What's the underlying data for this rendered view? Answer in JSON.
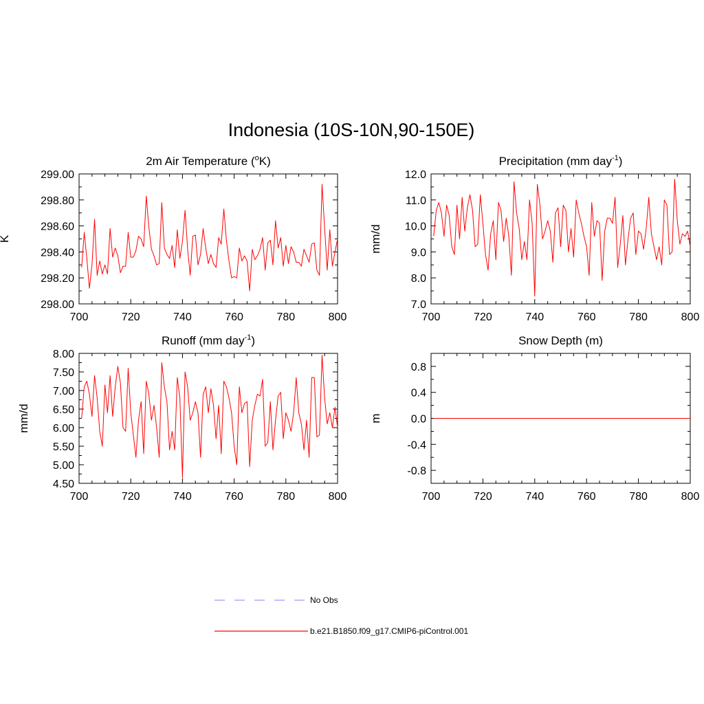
{
  "title": "Indonesia (10S-10N,90-150E)",
  "colors": {
    "model": "#ff0000",
    "obs": "#9999ff",
    "axis": "#000000"
  },
  "legend": {
    "obs_label": "No Obs",
    "model_label": "b.e21.B1850.f09_g17.CMIP6-piControl.001"
  },
  "chart_data": [
    {
      "type": "line",
      "title_parts": [
        "2m Air Temperature (",
        "o",
        "K)"
      ],
      "title_superscript_index": 1,
      "ylabel": "K",
      "xlim": [
        700,
        800
      ],
      "ylim": [
        298.0,
        299.0
      ],
      "xticks": [
        "700",
        "720",
        "740",
        "760",
        "780",
        "800"
      ],
      "yticks": [
        "298.00",
        "298.20",
        "298.40",
        "298.60",
        "298.80",
        "299.00"
      ],
      "series": [
        {
          "name": "b.e21.B1850.f09_g17.CMIP6-piControl.001",
          "x_start": 701,
          "x_step": 1,
          "values": [
            298.28,
            298.55,
            298.35,
            298.12,
            298.3,
            298.65,
            298.22,
            298.33,
            298.23,
            298.3,
            298.23,
            298.58,
            298.36,
            298.43,
            298.37,
            298.24,
            298.29,
            298.29,
            298.55,
            298.36,
            298.36,
            298.41,
            298.52,
            298.5,
            298.44,
            298.83,
            298.59,
            298.42,
            298.37,
            298.3,
            298.31,
            298.78,
            298.43,
            298.38,
            298.35,
            298.45,
            298.28,
            298.57,
            298.35,
            298.48,
            298.72,
            298.42,
            298.22,
            298.52,
            298.53,
            298.3,
            298.38,
            298.58,
            298.43,
            298.31,
            298.38,
            298.31,
            298.28,
            298.51,
            298.46,
            298.73,
            298.49,
            298.33,
            298.2,
            298.21,
            298.2,
            298.43,
            298.33,
            298.37,
            298.33,
            298.1,
            298.42,
            298.34,
            298.37,
            298.42,
            298.51,
            298.26,
            298.47,
            298.49,
            298.3,
            298.64,
            298.43,
            298.51,
            298.29,
            298.45,
            298.31,
            298.44,
            298.4,
            298.32,
            298.32,
            298.29,
            298.42,
            298.37,
            298.32,
            298.46,
            298.47,
            298.26,
            298.22,
            298.92,
            298.58,
            298.26,
            298.57,
            298.29,
            298.4,
            298.5
          ]
        }
      ]
    },
    {
      "type": "line",
      "title_parts": [
        "Precipitation (mm day",
        "-1",
        ")"
      ],
      "title_superscript_index": 1,
      "ylabel": "mm/d",
      "xlim": [
        700,
        800
      ],
      "ylim": [
        7.0,
        12.0
      ],
      "xticks": [
        "700",
        "720",
        "740",
        "760",
        "780",
        "800"
      ],
      "yticks": [
        "7.0",
        "8.0",
        "9.0",
        "10.0",
        "11.0",
        "12.0"
      ],
      "series": [
        {
          "name": "b.e21.B1850.f09_g17.CMIP6-piControl.001",
          "x_start": 701,
          "x_step": 1,
          "values": [
            9.6,
            10.6,
            10.9,
            10.5,
            9.6,
            10.8,
            10.4,
            9.2,
            8.9,
            10.8,
            9.5,
            11.1,
            9.8,
            10.7,
            11.2,
            10.6,
            9.2,
            9.3,
            11.2,
            10.1,
            8.9,
            8.3,
            9.7,
            10.2,
            8.7,
            10.9,
            10.6,
            9.4,
            10.3,
            9.6,
            8.1,
            11.7,
            10.5,
            9.9,
            8.7,
            9.4,
            8.7,
            11.0,
            10.1,
            7.3,
            11.6,
            10.8,
            9.5,
            9.8,
            10.2,
            9.8,
            8.6,
            10.5,
            10.7,
            9.2,
            10.8,
            10.6,
            9.0,
            9.9,
            8.8,
            11.0,
            10.5,
            10.1,
            9.6,
            9.2,
            8.1,
            10.9,
            9.6,
            10.2,
            10.1,
            7.9,
            9.8,
            10.3,
            10.3,
            10.1,
            11.1,
            8.4,
            9.3,
            10.4,
            8.5,
            9.5,
            10.3,
            10.5,
            8.9,
            9.8,
            9.7,
            9.1,
            9.9,
            11.1,
            9.7,
            9.2,
            8.7,
            9.2,
            8.5,
            11.0,
            10.8,
            8.9,
            9.0,
            11.8,
            10.2,
            9.3,
            9.7,
            9.6,
            9.8,
            9.2
          ]
        }
      ]
    },
    {
      "type": "line",
      "title_parts": [
        "Runoff (mm day",
        "-1",
        ")"
      ],
      "title_superscript_index": 1,
      "ylabel": "mm/d",
      "xlim": [
        700,
        800
      ],
      "ylim": [
        4.5,
        8.0
      ],
      "xticks": [
        "700",
        "720",
        "740",
        "760",
        "780",
        "800"
      ],
      "yticks": [
        "4.50",
        "5.00",
        "5.50",
        "6.00",
        "6.50",
        "7.00",
        "7.50",
        "8.00"
      ],
      "series": [
        {
          "name": "b.e21.B1850.f09_g17.CMIP6-piControl.001",
          "x_start": 701,
          "x_step": 1,
          "values": [
            6.25,
            7.1,
            7.25,
            6.9,
            6.3,
            7.4,
            6.8,
            5.9,
            5.5,
            7.15,
            6.4,
            7.4,
            6.3,
            7.1,
            7.65,
            7.2,
            6.0,
            5.9,
            7.6,
            6.4,
            5.8,
            5.2,
            6.2,
            6.7,
            5.3,
            7.25,
            6.9,
            6.2,
            6.6,
            6.0,
            5.2,
            7.75,
            7.1,
            6.7,
            5.4,
            5.9,
            5.4,
            7.35,
            6.8,
            4.65,
            7.5,
            7.1,
            6.2,
            6.4,
            6.7,
            6.4,
            5.2,
            6.9,
            7.1,
            6.4,
            7.05,
            6.6,
            5.7,
            6.6,
            5.3,
            7.25,
            7.1,
            6.8,
            6.4,
            5.5,
            5.0,
            7.1,
            6.4,
            6.65,
            6.7,
            4.95,
            6.2,
            6.6,
            6.9,
            6.85,
            7.3,
            5.5,
            5.6,
            6.7,
            5.4,
            6.2,
            6.85,
            6.95,
            5.7,
            6.4,
            6.2,
            5.9,
            6.4,
            7.35,
            6.4,
            6.1,
            5.4,
            6.2,
            5.2,
            7.35,
            7.35,
            5.75,
            5.8,
            7.95,
            6.8,
            6.1,
            6.4,
            6.0,
            6.55,
            6.0
          ]
        }
      ]
    },
    {
      "type": "line",
      "title_parts": [
        "Snow Depth (m)"
      ],
      "title_superscript_index": -1,
      "ylabel": "m",
      "xlim": [
        700,
        800
      ],
      "ylim": [
        -1.0,
        1.0
      ],
      "xticks": [
        "700",
        "720",
        "740",
        "760",
        "780",
        "800"
      ],
      "yticks": [
        "-0.8",
        "-0.4",
        "0.0",
        "0.4",
        "0.8"
      ],
      "ytick_values": [
        -0.8,
        -0.4,
        0.0,
        0.4,
        0.8
      ],
      "series": [
        {
          "name": "b.e21.B1850.f09_g17.CMIP6-piControl.001",
          "x": [
            701,
            800
          ],
          "values": [
            0.0,
            0.0
          ]
        }
      ]
    }
  ]
}
